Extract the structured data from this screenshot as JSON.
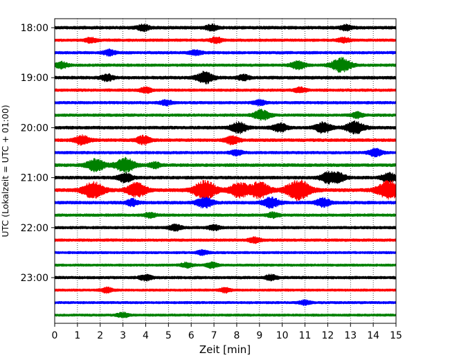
{
  "chart_data": {
    "type": "line",
    "title": "",
    "xlabel": "Zeit  [min]",
    "ylabel": "UTC (Lokalzeit = UTC + 01:00)",
    "xlim": [
      0,
      15
    ],
    "x_ticks": [
      0,
      1,
      2,
      3,
      4,
      5,
      6,
      7,
      8,
      9,
      10,
      11,
      12,
      13,
      14,
      15
    ],
    "x_tick_labels": [
      "0",
      "1",
      "2",
      "3",
      "4",
      "5",
      "6",
      "7",
      "8",
      "9",
      "10",
      "11",
      "12",
      "13",
      "14",
      "15"
    ],
    "y_ticks": [
      "18:00",
      "19:00",
      "20:00",
      "21:00",
      "22:00",
      "23:00"
    ],
    "grid": "vertical dotted",
    "color_cycle": [
      "#000000",
      "#ff0000",
      "#0000ff",
      "#008000"
    ],
    "traces": [
      {
        "start": "18:00",
        "amplitude": 1.0,
        "events": [
          [
            3.9,
            1.4
          ],
          [
            6.9,
            1.3
          ],
          [
            12.8,
            1.2
          ]
        ]
      },
      {
        "start": "18:15",
        "amplitude": 0.9,
        "events": [
          [
            1.6,
            1.2
          ],
          [
            7.1,
            1.3
          ],
          [
            12.7,
            1.2
          ]
        ]
      },
      {
        "start": "18:30",
        "amplitude": 0.9,
        "events": [
          [
            2.4,
            1.3
          ],
          [
            6.2,
            1.2
          ]
        ]
      },
      {
        "start": "18:45",
        "amplitude": 0.9,
        "events": [
          [
            0.3,
            1.5
          ],
          [
            10.7,
            2.0
          ],
          [
            12.6,
            3.5
          ]
        ]
      },
      {
        "start": "19:00",
        "amplitude": 1.0,
        "events": [
          [
            2.3,
            1.5
          ],
          [
            6.6,
            2.8
          ],
          [
            8.3,
            1.3
          ]
        ]
      },
      {
        "start": "19:15",
        "amplitude": 0.9,
        "events": [
          [
            4.0,
            1.3
          ],
          [
            10.8,
            1.2
          ]
        ]
      },
      {
        "start": "19:30",
        "amplitude": 0.9,
        "events": [
          [
            4.9,
            1.2
          ],
          [
            9.0,
            1.2
          ]
        ]
      },
      {
        "start": "19:45",
        "amplitude": 0.9,
        "events": [
          [
            9.1,
            2.5
          ],
          [
            13.3,
            1.3
          ]
        ]
      },
      {
        "start": "20:00",
        "amplitude": 1.0,
        "events": [
          [
            8.1,
            2.5
          ],
          [
            9.9,
            2.0
          ],
          [
            11.8,
            2.5
          ],
          [
            13.2,
            3.0
          ]
        ]
      },
      {
        "start": "20:15",
        "amplitude": 1.0,
        "events": [
          [
            1.2,
            2.2
          ],
          [
            3.9,
            2.0
          ],
          [
            7.8,
            1.8
          ]
        ]
      },
      {
        "start": "20:30",
        "amplitude": 0.9,
        "events": [
          [
            8.0,
            1.3
          ],
          [
            14.1,
            1.8
          ]
        ]
      },
      {
        "start": "20:45",
        "amplitude": 1.0,
        "events": [
          [
            1.8,
            3.0
          ],
          [
            3.1,
            3.5
          ],
          [
            4.4,
            1.3
          ]
        ]
      },
      {
        "start": "21:00",
        "amplitude": 1.0,
        "events": [
          [
            3.1,
            2.2
          ],
          [
            12.0,
            2.5
          ],
          [
            12.5,
            2.0
          ],
          [
            14.7,
            2.2
          ]
        ]
      },
      {
        "start": "21:15",
        "amplitude": 1.1,
        "events": [
          [
            1.7,
            4.0
          ],
          [
            3.6,
            3.5
          ],
          [
            6.6,
            4.5
          ],
          [
            8.1,
            3.5
          ],
          [
            9.0,
            3.8
          ],
          [
            10.7,
            5.0
          ],
          [
            14.7,
            4.5
          ]
        ]
      },
      {
        "start": "21:30",
        "amplitude": 1.0,
        "events": [
          [
            3.4,
            1.5
          ],
          [
            6.6,
            2.5
          ],
          [
            9.5,
            2.5
          ],
          [
            11.8,
            2.0
          ]
        ]
      },
      {
        "start": "21:45",
        "amplitude": 0.9,
        "events": [
          [
            4.2,
            1.2
          ],
          [
            9.6,
            1.2
          ]
        ]
      },
      {
        "start": "22:00",
        "amplitude": 0.9,
        "events": [
          [
            5.3,
            1.5
          ],
          [
            7.0,
            1.2
          ]
        ]
      },
      {
        "start": "22:15",
        "amplitude": 0.9,
        "events": [
          [
            8.8,
            1.3
          ]
        ]
      },
      {
        "start": "22:30",
        "amplitude": 0.8,
        "events": [
          [
            6.5,
            1.1
          ]
        ]
      },
      {
        "start": "22:45",
        "amplitude": 0.8,
        "events": [
          [
            5.8,
            1.2
          ],
          [
            6.9,
            1.3
          ]
        ]
      },
      {
        "start": "23:00",
        "amplitude": 0.9,
        "events": [
          [
            4.0,
            1.3
          ],
          [
            9.5,
            1.3
          ]
        ]
      },
      {
        "start": "23:15",
        "amplitude": 0.8,
        "events": [
          [
            2.3,
            1.2
          ],
          [
            7.5,
            1.1
          ]
        ]
      },
      {
        "start": "23:30",
        "amplitude": 0.8,
        "events": [
          [
            11.0,
            1.1
          ]
        ]
      },
      {
        "start": "23:45",
        "amplitude": 0.8,
        "events": [
          [
            3.0,
            1.1
          ]
        ]
      }
    ]
  }
}
